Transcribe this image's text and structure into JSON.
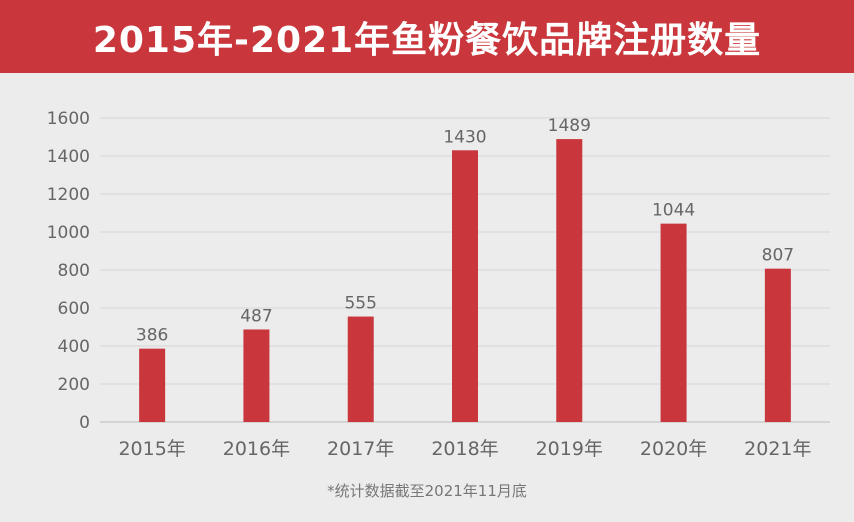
{
  "title": "2015年-2021年鱼粉餐饮品牌注册数量",
  "footnote": "*统计数据截至2021年11月底",
  "colors": {
    "header": "#c9363b",
    "bar": "#c9363b",
    "background": "#ececec",
    "grid": "#d6d6d6",
    "text": "#666666"
  },
  "chart_data": {
    "type": "bar",
    "categories": [
      "2015年",
      "2016年",
      "2017年",
      "2018年",
      "2019年",
      "2020年",
      "2021年"
    ],
    "values": [
      386,
      487,
      555,
      1430,
      1489,
      1044,
      807
    ],
    "data_labels": [
      "386",
      "487",
      "555",
      "1430",
      "1489",
      "1044",
      "807"
    ],
    "y_ticks": [
      "0",
      "200",
      "400",
      "600",
      "800",
      "1000",
      "1200",
      "1400",
      "1600"
    ],
    "ylim": [
      0,
      1600
    ],
    "grid": true,
    "legend": "none"
  }
}
